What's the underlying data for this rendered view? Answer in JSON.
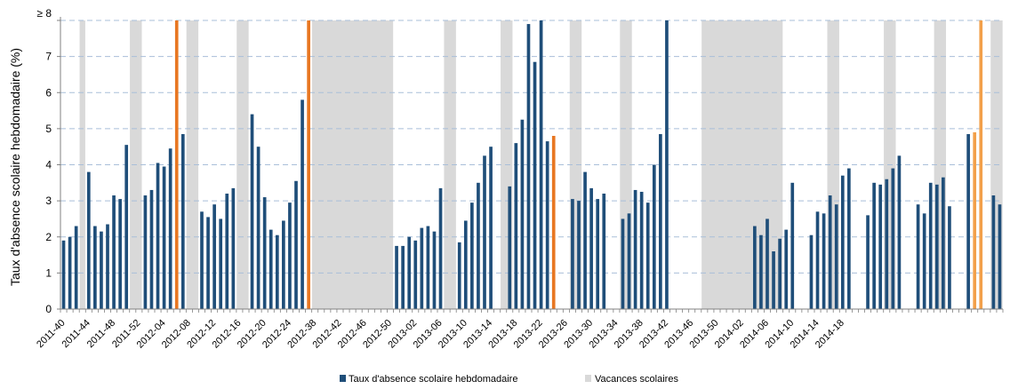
{
  "chart_data": {
    "type": "bar",
    "ylabel": "Taux d'absence scolaire hebdomadaire (%)",
    "xlabel": "",
    "ylim": [
      0,
      8
    ],
    "yticks": [
      "0",
      "1",
      "2",
      "3",
      "4",
      "5",
      "6",
      "7",
      "≥ 8"
    ],
    "grid": "horizontal dashed",
    "legend_placement": "bottom",
    "colors": {
      "absence": "#1f4e79",
      "holidays": "#d9d9d9",
      "high": "#e87722",
      "high_light": "#f2a04a",
      "grid": "#a9bfd9"
    },
    "xtick_labels": [
      "2011-40",
      "2011-44",
      "2011-48",
      "2011-52",
      "2012-04",
      "2012-08",
      "2012-12",
      "2012-16",
      "2012-20",
      "2012-24",
      "2012-38",
      "2012-42",
      "2012-46",
      "2012-50",
      "2013-02",
      "2013-06",
      "2013-10",
      "2013-14",
      "2013-18",
      "2013-22",
      "2013-26",
      "2013-30",
      "2013-34",
      "2013-38",
      "2013-42",
      "2013-46",
      "2013-50",
      "2014-02",
      "2014-06",
      "2014-10",
      "2014-14",
      "2014-18"
    ],
    "series": [
      {
        "name": "Taux d'absence scolaire hebdomadaire",
        "values": [
          1.9,
          2.0,
          2.3,
          null,
          3.8,
          2.3,
          2.15,
          2.35,
          3.15,
          3.05,
          4.55,
          null,
          null,
          3.15,
          3.3,
          4.05,
          3.95,
          4.45,
          8.0,
          4.85,
          null,
          null,
          2.7,
          2.55,
          2.9,
          2.5,
          3.2,
          3.35,
          null,
          null,
          5.4,
          4.5,
          3.1,
          2.2,
          2.05,
          2.45,
          2.95,
          3.55,
          5.8,
          8.0,
          null,
          null,
          null,
          null,
          null,
          null,
          null,
          null,
          null,
          null,
          null,
          null,
          null,
          1.75,
          1.75,
          2.0,
          1.9,
          2.25,
          2.3,
          2.15,
          3.35,
          null,
          null,
          1.85,
          2.45,
          2.95,
          3.5,
          4.25,
          4.5,
          null,
          null,
          3.4,
          4.6,
          5.25,
          7.9,
          6.85,
          8.0,
          4.65,
          4.8,
          null,
          null,
          3.05,
          3.0,
          3.8,
          3.35,
          3.05,
          3.2,
          null,
          null,
          2.5,
          2.65,
          3.3,
          3.25,
          2.95,
          4.0,
          4.85,
          8.0,
          null,
          null,
          null,
          null,
          null,
          null,
          null,
          null,
          null,
          null,
          null,
          null,
          null,
          2.3,
          2.05,
          2.5,
          1.6,
          1.95,
          2.2,
          3.5,
          null,
          null,
          2.05,
          2.7,
          2.65,
          3.15,
          2.9,
          3.7,
          3.9,
          null,
          null,
          2.6,
          3.5,
          3.45,
          3.6,
          3.9,
          4.25,
          null,
          null,
          2.9,
          2.65,
          3.5,
          3.45,
          3.65,
          2.85,
          null,
          null,
          4.85,
          4.9,
          8.0,
          null,
          3.15,
          2.9
        ]
      }
    ],
    "highlight_bars_x": [
      18,
      39,
      78,
      80,
      101,
      145,
      146,
      147
    ],
    "holiday_bands": [
      [
        3,
        3
      ],
      [
        11,
        12
      ],
      [
        20,
        21
      ],
      [
        28,
        29
      ],
      [
        40,
        52
      ],
      [
        61,
        62
      ],
      [
        70,
        71
      ],
      [
        81,
        82
      ],
      [
        89,
        90
      ],
      [
        102,
        114
      ],
      [
        122,
        123
      ],
      [
        131,
        132
      ],
      [
        139,
        140
      ],
      [
        148,
        149
      ]
    ],
    "legend": [
      "Taux d'absence scolaire hebdomadaire",
      "Vacances scolaires"
    ]
  }
}
